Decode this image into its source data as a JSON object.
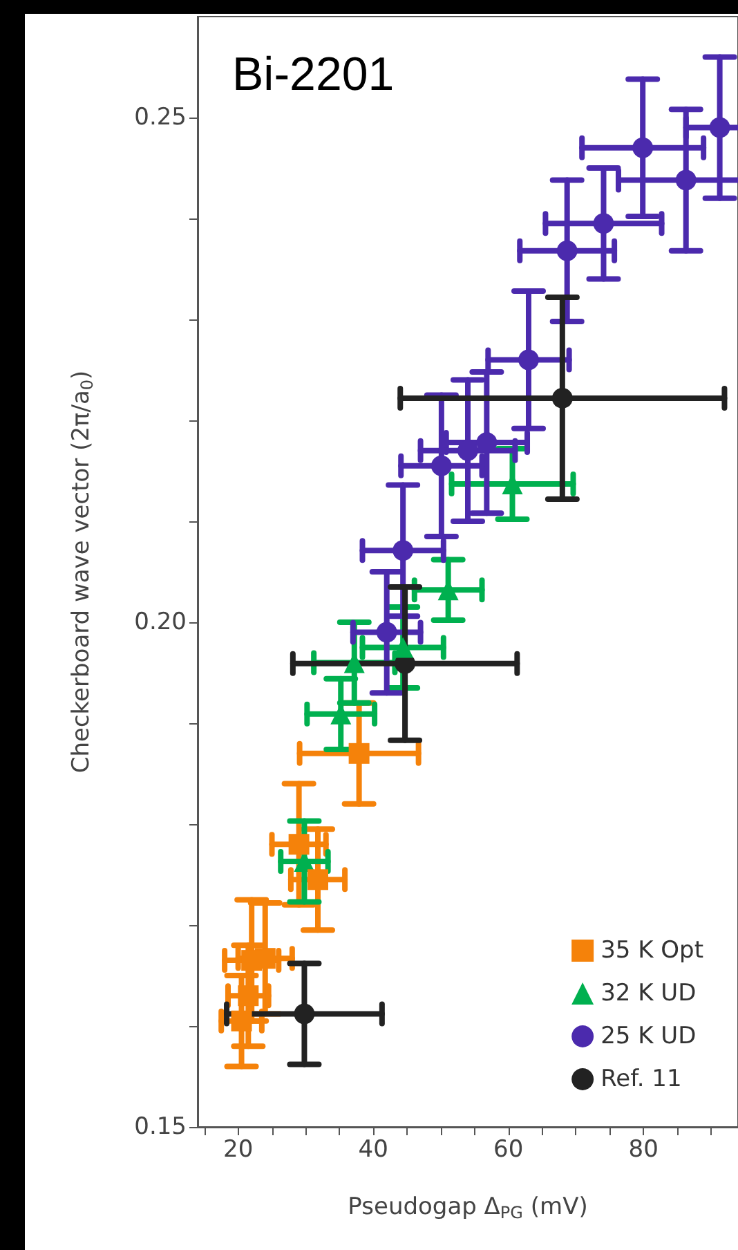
{
  "chart_data": {
    "type": "scatter",
    "title": "Bi-2201",
    "xlabel": "Pseudogap Δ$_{PG}$ (mV)",
    "ylabel": "Checkerboard wave vector (2π/a$_{0}$)",
    "xlim": [
      14,
      94
    ],
    "ylim": [
      0.15,
      0.26
    ],
    "xticks": [
      {
        "value": 15,
        "label": null
      },
      20,
      {
        "value": 25,
        "label": null
      },
      {
        "value": 30,
        "label": null
      },
      {
        "value": 35,
        "label": null
      },
      40,
      {
        "value": 45,
        "label": null
      },
      {
        "value": 50,
        "label": null
      },
      {
        "value": 55,
        "label": null
      },
      60,
      {
        "value": 65,
        "label": null
      },
      {
        "value": 70,
        "label": null
      },
      {
        "value": 75,
        "label": null
      },
      80,
      {
        "value": 85,
        "label": null
      },
      {
        "value": 90,
        "label": null
      }
    ],
    "yticks": [
      0.15,
      {
        "value": 0.16,
        "label": null
      },
      {
        "value": 0.17,
        "label": null
      },
      {
        "value": 0.18,
        "label": null
      },
      {
        "value": 0.19,
        "label": null
      },
      {
        "value": 0.2,
        "label": "0.20"
      },
      {
        "value": 0.21,
        "label": null
      },
      {
        "value": 0.22,
        "label": null
      },
      {
        "value": 0.23,
        "label": null
      },
      {
        "value": 0.24,
        "label": null
      },
      0.25
    ],
    "legend": "bottom right",
    "series": [
      {
        "name": "35 K Opt",
        "color": "#f5820a",
        "marker": "square",
        "x": [
          37.9,
          31.8,
          29,
          24,
          22,
          20.5,
          21.5
        ],
        "values": [
          0.187,
          0.1745,
          0.178,
          0.1667,
          0.1665,
          0.1605,
          0.163
        ],
        "xerrors": [
          8.8,
          4,
          4,
          4,
          4,
          3,
          3
        ],
        "errors": [
          0.005,
          0.005,
          0.006,
          0.0055,
          0.006,
          0.0045,
          0.005
        ]
      },
      {
        "name": "32 K UD",
        "color": "#00b04f",
        "marker": "triangle",
        "x": [
          60.6,
          51.1,
          44.4,
          37.2,
          35.2,
          29.8
        ],
        "values": [
          0.2137,
          0.2032,
          0.1975,
          0.196,
          0.1909,
          0.1763
        ],
        "xerrors": [
          9,
          5,
          6,
          6,
          5,
          3.5
        ],
        "errors": [
          0.0035,
          0.003,
          0.004,
          0.004,
          0.0035,
          0.004
        ]
      },
      {
        "name": "25 K UD",
        "color": "#4b2aad",
        "marker": "circle",
        "x": [
          91.3,
          79.9,
          86.3,
          74.1,
          68.7,
          63.0,
          56.8,
          54,
          50.1,
          44.4,
          42
        ],
        "values": [
          0.249,
          0.247,
          0.2438,
          0.2395,
          0.2368,
          0.226,
          0.2178,
          0.217,
          0.2155,
          0.2071,
          0.199
        ],
        "xerrors": [
          5,
          9,
          10,
          8.6,
          7,
          6,
          6,
          7,
          6,
          6,
          5
        ],
        "errors": [
          0.007,
          0.0068,
          0.007,
          0.0055,
          0.007,
          0.0068,
          0.007,
          0.007,
          0.007,
          0.0065,
          0.006
        ]
      },
      {
        "name": "Ref. 11",
        "color": "#222222",
        "marker": "circle",
        "x": [
          68.0,
          44.7,
          29.8
        ],
        "values": [
          0.2222,
          0.1959,
          0.1612
        ],
        "xerrors": [
          24,
          16.6,
          11.5
        ],
        "errors": [
          0.01,
          0.0076,
          0.005
        ]
      }
    ]
  }
}
